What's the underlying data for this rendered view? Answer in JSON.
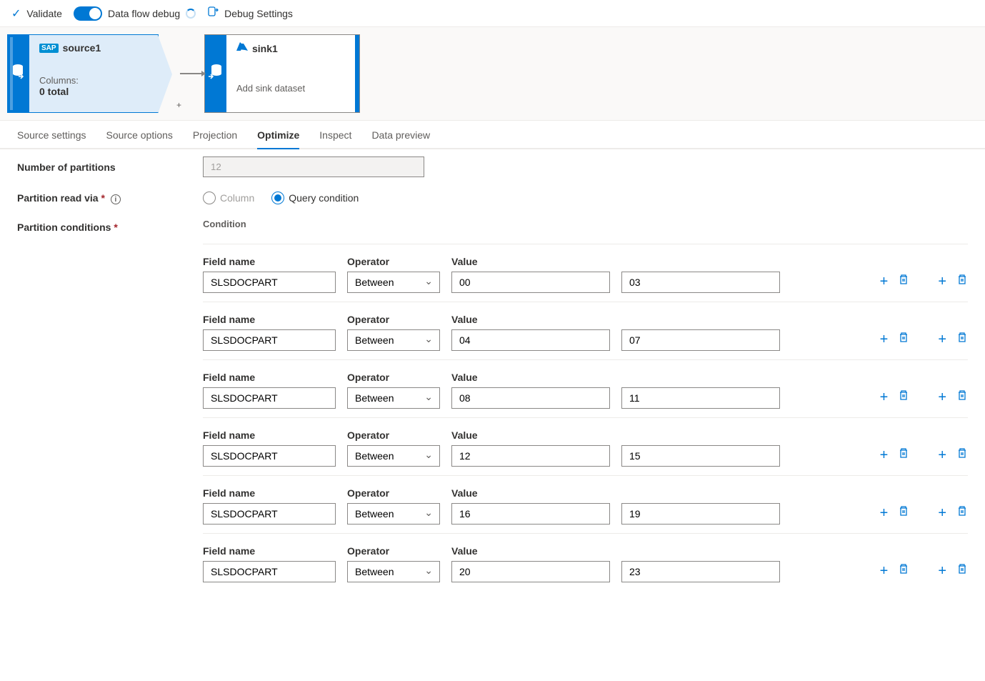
{
  "toolbar": {
    "validate": "Validate",
    "dataflow_debug": "Data flow debug",
    "debug_settings": "Debug Settings"
  },
  "canvas": {
    "source": {
      "title": "source1",
      "columns_label": "Columns:",
      "columns_count": "0 total"
    },
    "sink": {
      "title": "sink1",
      "subtitle": "Add sink dataset"
    }
  },
  "tabs": [
    "Source settings",
    "Source options",
    "Projection",
    "Optimize",
    "Inspect",
    "Data preview"
  ],
  "active_tab": "Optimize",
  "form": {
    "num_partitions_label": "Number of partitions",
    "num_partitions_value": "12",
    "partition_read_label": "Partition read via",
    "radio_column": "Column",
    "radio_query": "Query condition",
    "partition_conditions_label": "Partition conditions",
    "condition_header": "Condition",
    "field_name_label": "Field name",
    "operator_label": "Operator",
    "value_label": "Value"
  },
  "conditions": [
    {
      "field": "SLSDOCPART",
      "operator": "Between",
      "v1": "00",
      "v2": "03"
    },
    {
      "field": "SLSDOCPART",
      "operator": "Between",
      "v1": "04",
      "v2": "07"
    },
    {
      "field": "SLSDOCPART",
      "operator": "Between",
      "v1": "08",
      "v2": "11"
    },
    {
      "field": "SLSDOCPART",
      "operator": "Between",
      "v1": "12",
      "v2": "15"
    },
    {
      "field": "SLSDOCPART",
      "operator": "Between",
      "v1": "16",
      "v2": "19"
    },
    {
      "field": "SLSDOCPART",
      "operator": "Between",
      "v1": "20",
      "v2": "23"
    }
  ],
  "colors": {
    "primary": "#0078d4",
    "text": "#323130",
    "muted": "#605e5c",
    "border": "#8a8886",
    "bg_light": "#faf9f8",
    "source_bg": "#deecf9"
  }
}
